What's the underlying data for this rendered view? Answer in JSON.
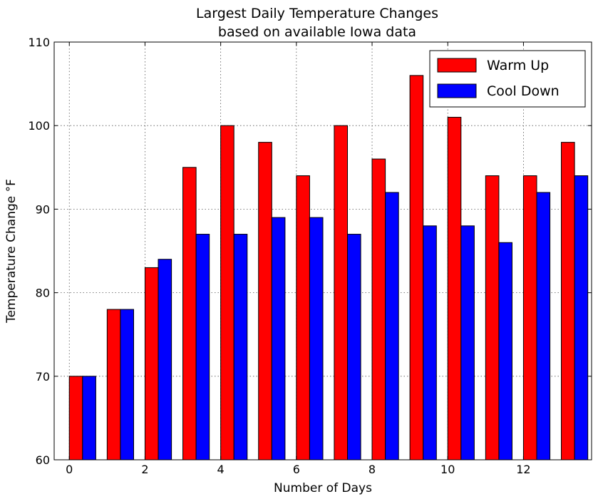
{
  "chart_data": {
    "type": "bar",
    "title": "Largest Daily Temperature Changes",
    "subtitle": "based on available Iowa data",
    "xlabel": "Number of Days",
    "ylabel": "Temperature Change °F",
    "categories": [
      0,
      1,
      2,
      3,
      4,
      5,
      6,
      7,
      8,
      9,
      10,
      11,
      12,
      13
    ],
    "x_ticks": [
      0,
      2,
      4,
      6,
      8,
      10,
      12
    ],
    "y_ticks": [
      60,
      70,
      80,
      90,
      100,
      110
    ],
    "ylim": [
      60,
      110
    ],
    "grid": true,
    "legend_position": "top-right",
    "series": [
      {
        "name": "Warm Up",
        "color": "#ff0000",
        "values": [
          70,
          78,
          83,
          95,
          100,
          98,
          94,
          100,
          96,
          106,
          101,
          94,
          94,
          98
        ]
      },
      {
        "name": "Cool Down",
        "color": "#0000ff",
        "values": [
          70,
          78,
          84,
          87,
          87,
          89,
          89,
          87,
          92,
          88,
          88,
          86,
          92,
          94
        ]
      }
    ]
  }
}
